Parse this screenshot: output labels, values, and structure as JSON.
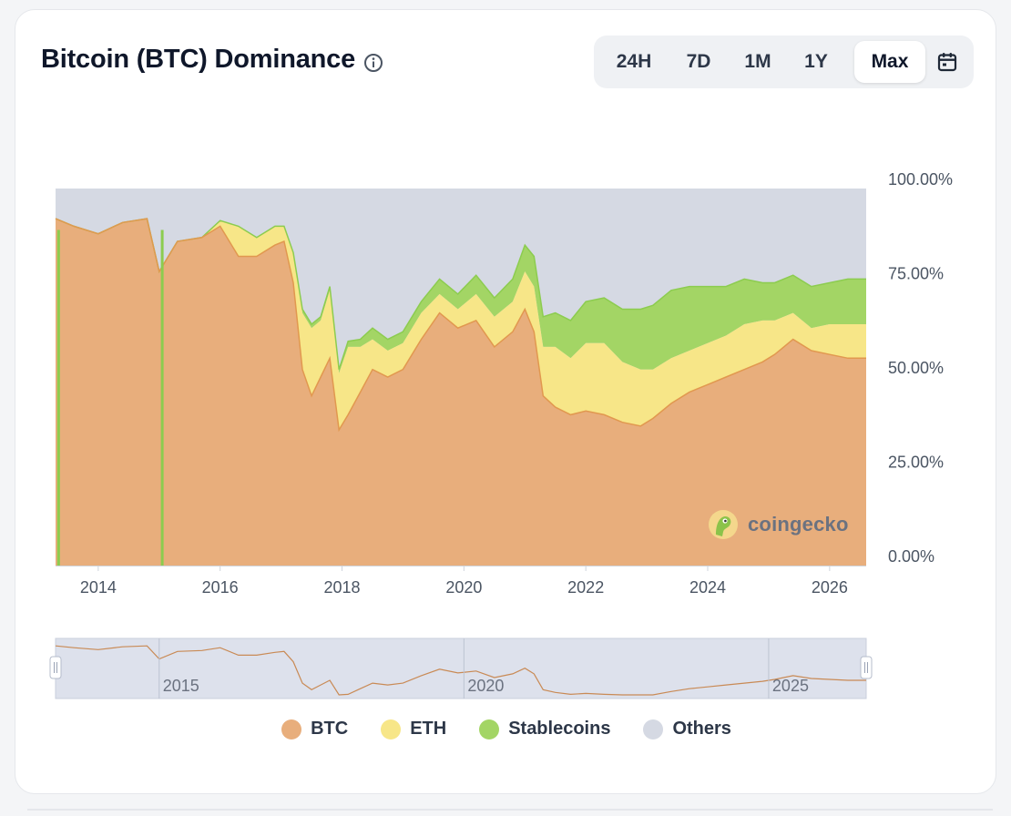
{
  "card": {
    "title": "Bitcoin (BTC) Dominance",
    "icons": {
      "info": "info-icon",
      "calendar": "calendar-icon",
      "handle": "drag-handle-icon",
      "logo": "coingecko-logo-icon"
    }
  },
  "range_buttons": [
    {
      "label": "24H",
      "active": false
    },
    {
      "label": "7D",
      "active": false
    },
    {
      "label": "1M",
      "active": false
    },
    {
      "label": "1Y",
      "active": false
    },
    {
      "label": "Max",
      "active": true
    }
  ],
  "watermark": "coingecko",
  "colors": {
    "BTC": "#e8ae7c",
    "ETH": "#f7e688",
    "Stablecoins": "#a3d565",
    "Others": "#d5d9e3",
    "btc_line": "#e1984f",
    "stable_line": "#8ccc4f"
  },
  "chart_data": {
    "type": "area",
    "stacked": true,
    "title": "Bitcoin (BTC) Dominance",
    "x_unit": "year",
    "x": [
      2013.3,
      2013.6,
      2014.0,
      2014.4,
      2014.8,
      2015.0,
      2015.3,
      2015.7,
      2016.0,
      2016.3,
      2016.6,
      2016.9,
      2017.05,
      2017.2,
      2017.35,
      2017.5,
      2017.65,
      2017.8,
      2017.95,
      2018.1,
      2018.3,
      2018.5,
      2018.75,
      2019.0,
      2019.3,
      2019.6,
      2019.9,
      2020.2,
      2020.5,
      2020.8,
      2021.0,
      2021.15,
      2021.3,
      2021.5,
      2021.75,
      2022.0,
      2022.3,
      2022.6,
      2022.9,
      2023.1,
      2023.4,
      2023.7,
      2024.0,
      2024.3,
      2024.6,
      2024.9,
      2025.1,
      2025.4,
      2025.7,
      2026.0,
      2026.3,
      2026.6
    ],
    "series": [
      {
        "name": "BTC",
        "values": [
          92,
          90,
          88,
          91,
          92,
          78,
          86,
          87,
          90,
          82,
          82,
          85,
          86,
          75,
          52,
          45,
          50,
          55,
          36,
          40,
          46,
          52,
          50,
          52,
          60,
          67,
          63,
          65,
          58,
          62,
          68,
          62,
          45,
          42,
          40,
          41,
          40,
          38,
          37,
          39,
          43,
          46,
          48,
          50,
          52,
          54,
          56,
          60,
          57,
          56,
          55,
          55
        ]
      },
      {
        "name": "ETH",
        "values": [
          0,
          0,
          0,
          0,
          0,
          0,
          0,
          0,
          1.5,
          8,
          5,
          5,
          4,
          8,
          15,
          18,
          15,
          18,
          15,
          18,
          12,
          8,
          7,
          7,
          7,
          5,
          5,
          7,
          8,
          8,
          10,
          12,
          13,
          16,
          15,
          18,
          19,
          16,
          15,
          13,
          12,
          11,
          11,
          11,
          12,
          11,
          9,
          7,
          6,
          8,
          9,
          9
        ]
      },
      {
        "name": "Stablecoins",
        "values": [
          0,
          0,
          0,
          0,
          0,
          0,
          0,
          0,
          0,
          0,
          0,
          0,
          0,
          0,
          1,
          1,
          1,
          1,
          1,
          1.5,
          2,
          3,
          3,
          3,
          3,
          4,
          4,
          5,
          5,
          6,
          7,
          8,
          8,
          9,
          10,
          11,
          12,
          14,
          16,
          17,
          18,
          17,
          15,
          13,
          12,
          10,
          10,
          10,
          11,
          11,
          12,
          12
        ]
      },
      {
        "name": "Others",
        "values": [
          8,
          10,
          12,
          9,
          8,
          22,
          14,
          13,
          8.5,
          10,
          13,
          10,
          10,
          17,
          32,
          36,
          34,
          26,
          48,
          40.5,
          40,
          37,
          40,
          38,
          30,
          24,
          28,
          23,
          29,
          24,
          15,
          18,
          34,
          33,
          35,
          30,
          29,
          32,
          32,
          31,
          27,
          26,
          26,
          26,
          24,
          25,
          25,
          23,
          26,
          25,
          24,
          24
        ]
      }
    ],
    "x_ticks": [
      "2014",
      "2016",
      "2018",
      "2020",
      "2022",
      "2024",
      "2026"
    ],
    "y_ticks": [
      "100.00%",
      "75.00%",
      "50.00%",
      "25.00%",
      "0.00%"
    ],
    "ylim": [
      0,
      100
    ],
    "xlim": [
      2013.3,
      2026.6
    ],
    "legend": [
      "BTC",
      "ETH",
      "Stablecoins",
      "Others"
    ],
    "legend_position": "bottom",
    "grid": false,
    "navigator_ticks": [
      "2015",
      "2020",
      "2025"
    ]
  }
}
